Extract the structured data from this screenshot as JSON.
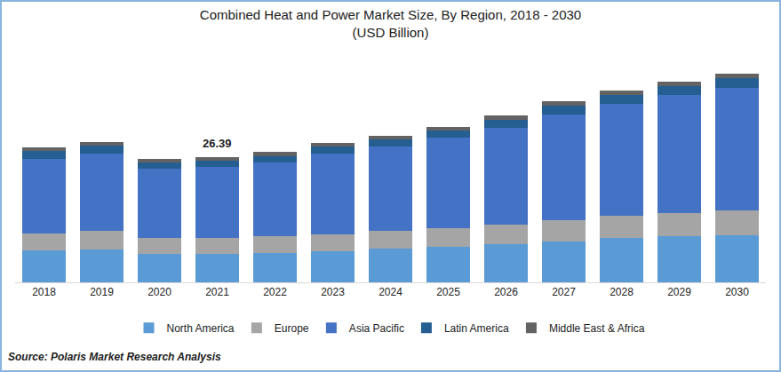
{
  "chart_data": {
    "type": "bar",
    "title": "Combined Heat and Power Market Size, By Region, 2018 - 2030",
    "subtitle": "(USD Billion)",
    "source": "Source: Polaris Market Research Analysis",
    "stacked": true,
    "legend": "bottom",
    "grid": false,
    "tick_labels": "x",
    "categories": [
      "2018",
      "2019",
      "2020",
      "2021",
      "2022",
      "2023",
      "2024",
      "2025",
      "2026",
      "2027",
      "2028",
      "2029",
      "2030"
    ],
    "ylim": [
      0,
      48
    ],
    "series": [
      {
        "name": "North America",
        "color": "#5b9bd5",
        "values": [
          6.7,
          6.9,
          5.95,
          6.0,
          6.2,
          6.6,
          7.1,
          7.5,
          8.0,
          8.6,
          9.3,
          9.7,
          10.0
        ]
      },
      {
        "name": "Europe",
        "color": "#a5a5a5",
        "values": [
          3.7,
          3.9,
          3.35,
          3.4,
          3.5,
          3.6,
          3.8,
          4.0,
          4.2,
          4.6,
          4.8,
          5.0,
          5.1
        ]
      },
      {
        "name": "Asia Pacific",
        "color": "#4472c4",
        "values": [
          15.6,
          16.4,
          14.7,
          14.9,
          15.6,
          16.9,
          17.8,
          19.0,
          20.5,
          22.3,
          23.5,
          24.8,
          25.9
        ]
      },
      {
        "name": "Latin America",
        "color": "#255e91",
        "values": [
          1.7,
          1.7,
          1.3,
          1.3,
          1.4,
          1.5,
          1.5,
          1.6,
          1.7,
          1.9,
          2.0,
          2.0,
          2.1
        ]
      },
      {
        "name": "Middle East & Africa",
        "color": "#636363",
        "values": [
          0.75,
          0.75,
          0.7,
          0.79,
          0.8,
          0.8,
          0.8,
          0.8,
          0.9,
          0.9,
          0.9,
          0.9,
          1.0
        ]
      }
    ],
    "annotations": [
      {
        "text": "26.39",
        "x": "2021",
        "y": 26.39
      }
    ]
  }
}
